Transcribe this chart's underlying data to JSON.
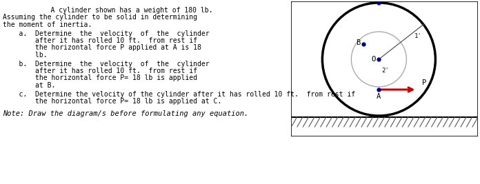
{
  "bg_color": "#ffffff",
  "text_color": "#000000",
  "fig_width": 6.96,
  "fig_height": 2.67,
  "dpi": 100,
  "line1": "    A cylinder shown has a weight of 180 lb.",
  "line2": "Assuming the cylinder to be solid in determining",
  "line3": "the moment of inertia.",
  "item_a_lines": [
    "    a.  Determine  the  velocity  of  the  cylinder",
    "        after it has rolled 10 ft.  from rest if",
    "        the horizontal force P applied at A is 18",
    "        lb."
  ],
  "item_b_lines": [
    "    b.  Determine  the  velocity  of  the  cylinder",
    "        after it has rolled 10 ft.  from rest if",
    "        the horizontal force P= 18 lb is applied",
    "        at B."
  ],
  "item_c_line1": "    c.  Determine the velocity of the cylinder after it has rolled 10 ft.  from rest if",
  "item_c_line2": "        the horizontal force P= 18 lb is applied at C.",
  "note_text": "Note: Draw the diagram/s before formulating any equation.",
  "arrow_color": "#cc0000",
  "point_color": "#00008b",
  "outer_circle_color": "#000000",
  "inner_circle_color": "#aaaaaa",
  "ground_hatch_color": "#555555",
  "line_color": "#555555",
  "box_color": "#000000"
}
